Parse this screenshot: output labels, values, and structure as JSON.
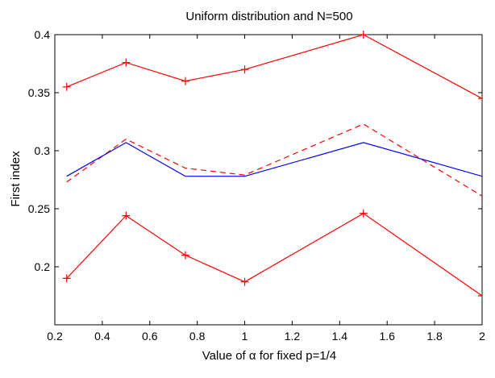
{
  "chart_data": {
    "type": "line",
    "title": "Uniform distribution and N=500",
    "xlabel": "Value of α for fixed p=1/4",
    "ylabel": "First index",
    "xlim": [
      0.2,
      2
    ],
    "ylim": [
      0.15,
      0.4
    ],
    "xticks": [
      0.2,
      0.4,
      0.6,
      0.8,
      1,
      1.2,
      1.4,
      1.6,
      1.8,
      2
    ],
    "xtick_labels": [
      "0.2",
      "0.4",
      "0.6",
      "0.8",
      "1",
      "1.2",
      "1.4",
      "1.6",
      "1.8",
      "2"
    ],
    "yticks": [
      0.2,
      0.25,
      0.3,
      0.35,
      0.4
    ],
    "ytick_labels": [
      "0.2",
      "0.25",
      "0.3",
      "0.35",
      "0.4"
    ],
    "grid": false,
    "x": [
      0.25,
      0.5,
      0.75,
      1,
      1.5,
      2
    ],
    "series": [
      {
        "values": [
          0.355,
          0.376,
          0.36,
          0.37,
          0.4,
          0.345
        ],
        "color": "#ff0000",
        "style": "solid",
        "marker": "plus"
      },
      {
        "values": [
          0.273,
          0.31,
          0.285,
          0.279,
          0.323,
          0.261
        ],
        "color": "#ff0000",
        "style": "dashed",
        "marker": "none"
      },
      {
        "values": [
          0.278,
          0.307,
          0.278,
          0.278,
          0.307,
          0.278
        ],
        "color": "#0000ff",
        "style": "solid",
        "marker": "none"
      },
      {
        "values": [
          0.19,
          0.244,
          0.21,
          0.187,
          0.246,
          0.175
        ],
        "color": "#ff0000",
        "style": "solid",
        "marker": "plus"
      }
    ]
  }
}
